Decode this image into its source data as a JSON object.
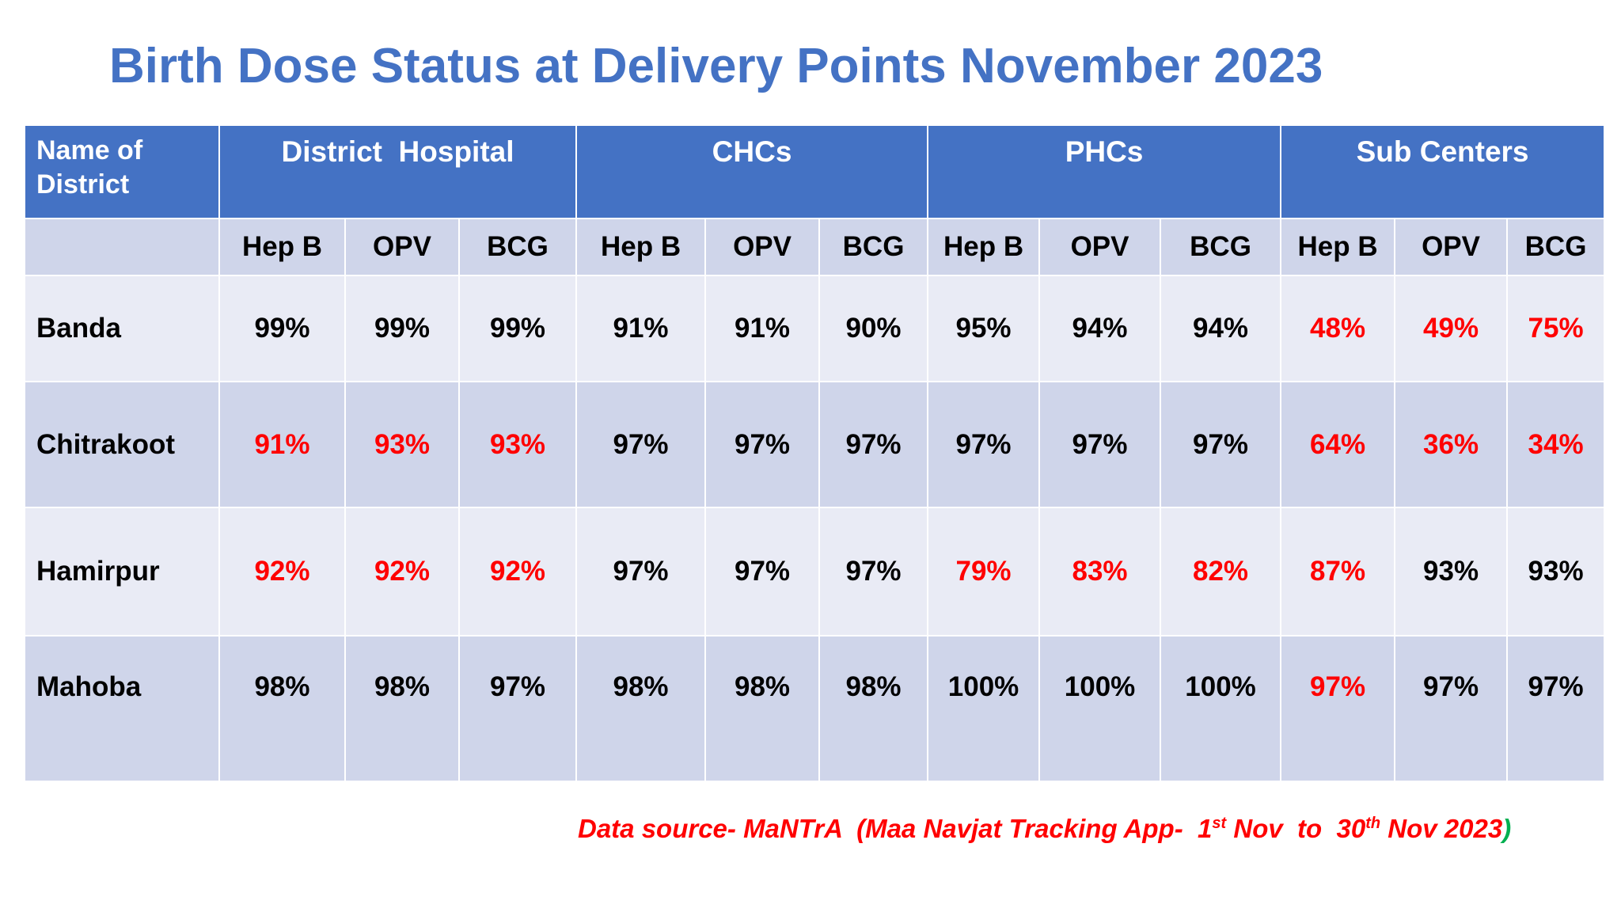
{
  "title": "Birth Dose Status at Delivery Points November 2023",
  "colors": {
    "header_blue": "#4472C4",
    "alert_red": "#FF0000",
    "row_light": "#E9EBF5",
    "row_dark": "#CFD5EA"
  },
  "table": {
    "name_header": "Name of\nDistrict",
    "groups": [
      "District  Hospital",
      "CHCs",
      "PHCs",
      "Sub Centers"
    ],
    "subheaders": [
      "Hep B",
      "OPV",
      "BCG",
      "Hep B",
      "OPV",
      "BCG",
      "Hep B",
      "OPV",
      "BCG",
      "Hep B",
      "OPV",
      "BCG"
    ],
    "rows": [
      {
        "district": "Banda",
        "values": [
          "99%",
          "99%",
          "99%",
          "91%",
          "91%",
          "90%",
          "95%",
          "94%",
          "94%",
          "48%",
          "49%",
          "75%"
        ],
        "red": [
          false,
          false,
          false,
          false,
          false,
          false,
          false,
          false,
          false,
          true,
          true,
          true
        ]
      },
      {
        "district": "Chitrakoot",
        "values": [
          "91%",
          "93%",
          "93%",
          "97%",
          "97%",
          "97%",
          "97%",
          "97%",
          "97%",
          "64%",
          "36%",
          "34%"
        ],
        "red": [
          true,
          true,
          true,
          false,
          false,
          false,
          false,
          false,
          false,
          true,
          true,
          true
        ]
      },
      {
        "district": "Hamirpur",
        "values": [
          "92%",
          "92%",
          "92%",
          "97%",
          "97%",
          "97%",
          "79%",
          "83%",
          "82%",
          "87%",
          "93%",
          "93%"
        ],
        "red": [
          true,
          true,
          true,
          false,
          false,
          false,
          true,
          true,
          true,
          true,
          false,
          false
        ]
      },
      {
        "district": "Mahoba",
        "values": [
          "98%",
          "98%",
          "97%",
          "98%",
          "98%",
          "98%",
          "100%",
          "100%",
          "100%",
          "97%",
          "97%",
          "97%"
        ],
        "red": [
          false,
          false,
          false,
          false,
          false,
          false,
          false,
          false,
          false,
          true,
          false,
          false
        ]
      }
    ]
  },
  "source": {
    "prefix": "Data source- MaNTrA  (Maa Navjat Tracking App-  1",
    "sup1": "st",
    "middle": " Nov  to  30",
    "sup2": "th",
    "suffix": " Nov 2023",
    "close": ")"
  }
}
